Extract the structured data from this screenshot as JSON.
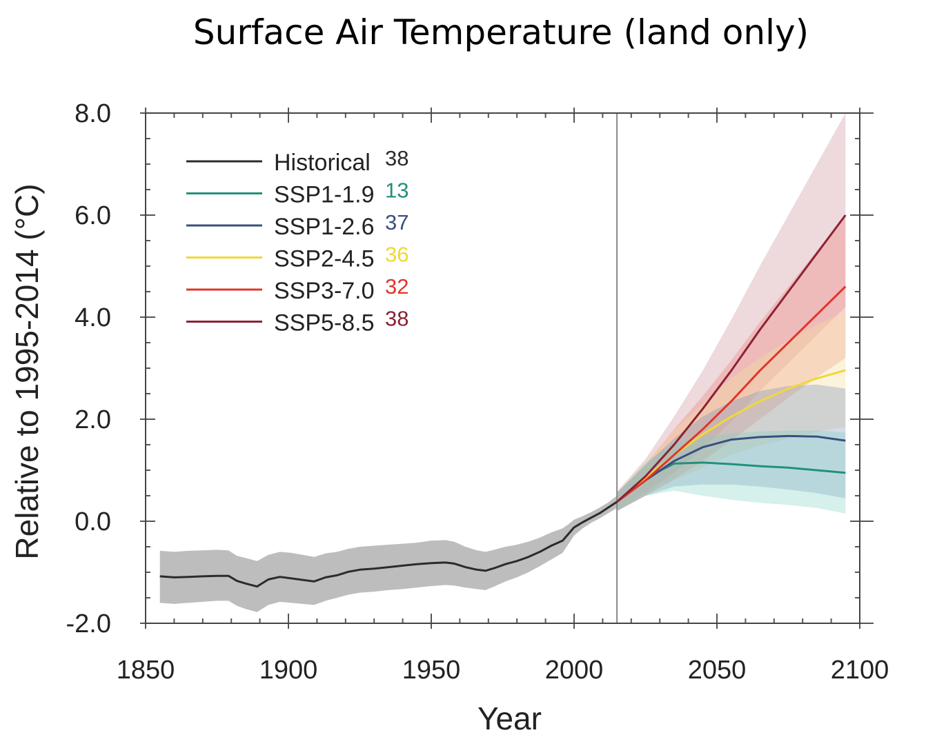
{
  "title": "Surface Air Temperature (land only)",
  "chart_data": {
    "type": "line",
    "title": "Surface Air Temperature (land only)",
    "xlabel": "Year",
    "ylabel": "Relative to 1995-2014 (°C)",
    "xlim": [
      1850,
      2100
    ],
    "ylim": [
      -2,
      8
    ],
    "xticks": [
      "1850",
      "1900",
      "1950",
      "2000",
      "2050",
      "2100"
    ],
    "yticks": [
      "-2.0",
      "0.0",
      "2.0",
      "4.0",
      "6.0",
      "8.0"
    ],
    "divider_year": 2015,
    "legend_position": "top-left",
    "series": [
      {
        "name": "Historical",
        "count": "38",
        "color": "#2b2b2b",
        "band_color": "#bdbdbd",
        "band_opacity": 1,
        "x": [
          1855,
          1860,
          1865,
          1870,
          1875,
          1879,
          1882,
          1885,
          1889,
          1893,
          1897,
          1901,
          1905,
          1909,
          1913,
          1917,
          1921,
          1925,
          1930,
          1935,
          1940,
          1945,
          1950,
          1955,
          1958,
          1962,
          1966,
          1969,
          1972,
          1976,
          1980,
          1984,
          1988,
          1992,
          1996,
          1998,
          2000,
          2003,
          2006,
          2009,
          2012,
          2015
        ],
        "y": [
          -1.08,
          -1.1,
          -1.09,
          -1.08,
          -1.07,
          -1.07,
          -1.17,
          -1.22,
          -1.28,
          -1.14,
          -1.09,
          -1.12,
          -1.15,
          -1.18,
          -1.1,
          -1.06,
          -0.99,
          -0.95,
          -0.93,
          -0.9,
          -0.87,
          -0.84,
          -0.82,
          -0.81,
          -0.83,
          -0.9,
          -0.95,
          -0.97,
          -0.92,
          -0.84,
          -0.78,
          -0.7,
          -0.6,
          -0.48,
          -0.38,
          -0.25,
          -0.12,
          -0.02,
          0.07,
          0.16,
          0.27,
          0.38
        ],
        "lower": [
          -1.6,
          -1.62,
          -1.6,
          -1.58,
          -1.56,
          -1.56,
          -1.66,
          -1.72,
          -1.78,
          -1.64,
          -1.58,
          -1.6,
          -1.62,
          -1.64,
          -1.56,
          -1.5,
          -1.44,
          -1.4,
          -1.38,
          -1.35,
          -1.33,
          -1.3,
          -1.27,
          -1.25,
          -1.26,
          -1.3,
          -1.33,
          -1.35,
          -1.28,
          -1.18,
          -1.1,
          -1.0,
          -0.88,
          -0.75,
          -0.62,
          -0.45,
          -0.28,
          -0.14,
          -0.03,
          0.06,
          0.16,
          0.26
        ],
        "upper": [
          -0.58,
          -0.6,
          -0.58,
          -0.57,
          -0.56,
          -0.57,
          -0.68,
          -0.72,
          -0.78,
          -0.66,
          -0.6,
          -0.62,
          -0.66,
          -0.7,
          -0.63,
          -0.6,
          -0.54,
          -0.5,
          -0.48,
          -0.46,
          -0.44,
          -0.42,
          -0.38,
          -0.37,
          -0.4,
          -0.5,
          -0.57,
          -0.6,
          -0.56,
          -0.5,
          -0.46,
          -0.4,
          -0.32,
          -0.22,
          -0.14,
          -0.06,
          0.03,
          0.1,
          0.18,
          0.27,
          0.37,
          0.5
        ]
      },
      {
        "name": "SSP1-1.9",
        "count": "13",
        "color": "#22907a",
        "band_color": "#7ecfc0",
        "band_opacity": 0.32,
        "x": [
          2015,
          2025,
          2035,
          2045,
          2055,
          2065,
          2075,
          2085,
          2095
        ],
        "y": [
          0.38,
          0.85,
          1.13,
          1.15,
          1.12,
          1.08,
          1.05,
          1.0,
          0.95
        ],
        "lower": [
          0.2,
          0.5,
          0.6,
          0.5,
          0.42,
          0.36,
          0.32,
          0.26,
          0.15
        ],
        "upper": [
          0.55,
          1.15,
          1.55,
          1.65,
          1.72,
          1.76,
          1.78,
          1.78,
          1.74
        ]
      },
      {
        "name": "SSP1-2.6",
        "count": "37",
        "color": "#384f7e",
        "band_color": "#6d87b8",
        "band_opacity": 0.3,
        "x": [
          2015,
          2025,
          2035,
          2045,
          2055,
          2065,
          2075,
          2085,
          2095
        ],
        "y": [
          0.38,
          0.8,
          1.18,
          1.45,
          1.6,
          1.65,
          1.67,
          1.66,
          1.58
        ],
        "lower": [
          0.2,
          0.5,
          0.68,
          0.72,
          0.72,
          0.68,
          0.62,
          0.55,
          0.45
        ],
        "upper": [
          0.56,
          1.1,
          1.62,
          2.05,
          2.35,
          2.55,
          2.65,
          2.68,
          2.6
        ]
      },
      {
        "name": "SSP2-4.5",
        "count": "36",
        "color": "#f0d83a",
        "band_color": "#f5dfa0",
        "band_opacity": 0.38,
        "x": [
          2015,
          2025,
          2035,
          2045,
          2055,
          2065,
          2075,
          2085,
          2095
        ],
        "y": [
          0.38,
          0.85,
          1.3,
          1.7,
          2.05,
          2.35,
          2.6,
          2.8,
          2.96
        ],
        "lower": [
          0.2,
          0.52,
          0.8,
          1.05,
          1.3,
          1.48,
          1.62,
          1.75,
          1.85
        ],
        "upper": [
          0.56,
          1.15,
          1.78,
          2.3,
          2.8,
          3.2,
          3.55,
          3.85,
          4.1
        ]
      },
      {
        "name": "SSP3-7.0",
        "count": "32",
        "color": "#e0352b",
        "band_color": "#f08a80",
        "band_opacity": 0.38,
        "x": [
          2015,
          2025,
          2035,
          2045,
          2055,
          2065,
          2075,
          2085,
          2095
        ],
        "y": [
          0.38,
          0.8,
          1.3,
          1.8,
          2.35,
          2.95,
          3.5,
          4.05,
          4.6
        ],
        "lower": [
          0.2,
          0.5,
          0.82,
          1.18,
          1.58,
          2.0,
          2.42,
          2.82,
          3.2
        ],
        "upper": [
          0.56,
          1.12,
          1.8,
          2.45,
          3.15,
          3.9,
          4.6,
          5.3,
          6.0
        ]
      },
      {
        "name": "SSP5-8.5",
        "count": "38",
        "color": "#8a2233",
        "band_color": "#c98a95",
        "band_opacity": 0.32,
        "x": [
          2015,
          2025,
          2035,
          2045,
          2055,
          2065,
          2075,
          2085,
          2095
        ],
        "y": [
          0.38,
          0.88,
          1.5,
          2.2,
          2.95,
          3.75,
          4.5,
          5.25,
          6.0
        ],
        "lower": [
          0.2,
          0.55,
          0.95,
          1.42,
          1.95,
          2.55,
          3.1,
          3.65,
          4.2
        ],
        "upper": [
          0.58,
          1.22,
          2.05,
          2.95,
          3.95,
          5.0,
          6.0,
          7.0,
          8.0
        ]
      }
    ]
  }
}
